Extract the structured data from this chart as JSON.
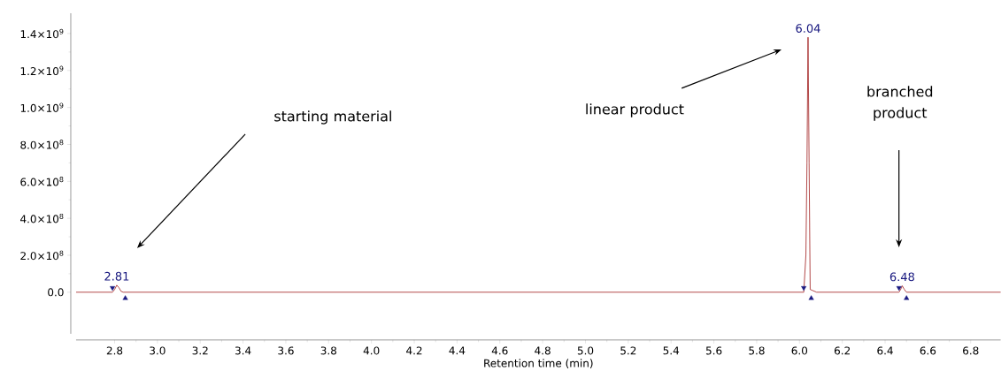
{
  "chart_data": {
    "type": "line",
    "xlabel": "Retention time (min)",
    "xlim": [
      2.62,
      6.94
    ],
    "ylim": [
      -225000000.0,
      1510000000.0
    ],
    "xticks": [
      2.8,
      {
        "value": 3,
        "label": "3.0"
      },
      3.2,
      3.4,
      3.6,
      3.8,
      {
        "value": 4,
        "label": "4.0"
      },
      4.2,
      4.4,
      4.6,
      4.8,
      {
        "value": 5,
        "label": "5.0"
      },
      5.2,
      5.4,
      5.6,
      5.8,
      {
        "value": 6,
        "label": "6.0"
      },
      6.2,
      6.4,
      6.6,
      6.8
    ],
    "yticks": [
      {
        "value": 0,
        "label": "0.0"
      },
      {
        "value": 200000000.0,
        "label": "2.0×10$^{8}$"
      },
      {
        "value": 400000000.0,
        "label": "4.0×10$^{8}$"
      },
      {
        "value": 600000000.0,
        "label": "6.0×10$^{8}$"
      },
      {
        "value": 800000000.0,
        "label": "8.0×10$^{8}$"
      },
      {
        "value": 1000000000.0,
        "label": "1.0×10$^{9}$"
      },
      {
        "value": 1200000000.0,
        "label": "1.2×10$^{9}$"
      },
      {
        "value": 1400000000.0,
        "label": "1.4×10$^{9}$"
      }
    ],
    "grid": false,
    "series": [
      {
        "color": "#a01c1c",
        "marker": "none",
        "line_style": "solid",
        "x": [
          2.62,
          2.79,
          2.8,
          2.81,
          2.82,
          2.83,
          2.84,
          6.02,
          6.03,
          6.035,
          6.04,
          6.045,
          6.05,
          6.06,
          6.08,
          6.465,
          6.475,
          6.48,
          6.49,
          6.5,
          6.94
        ],
        "values": [
          0,
          0,
          15000000.0,
          38000000.0,
          25000000.0,
          5000000.0,
          0,
          0,
          200000000.0,
          700000000.0,
          1380000000.0,
          700000000.0,
          15000000.0,
          10000000.0,
          0,
          0,
          20000000.0,
          35000000.0,
          15000000.0,
          0,
          0
        ]
      },
      {
        "type": "scatter",
        "color": "#1a1a80",
        "marker": "triangle_down",
        "x": [
          2.79,
          6.02,
          6.465
        ],
        "values": [
          24000000.0,
          24000000.0,
          24000000.0
        ]
      },
      {
        "type": "scatter",
        "color": "#1a1a80",
        "marker": "triangle",
        "x": [
          2.85,
          6.055,
          6.5
        ],
        "values": [
          -33000000.0,
          -33000000.0,
          -33000000.0
        ]
      }
    ],
    "annotations": [
      {
        "text": "2.81",
        "x": 2.81,
        "y": 38000000.0
      },
      {
        "text": "6.04",
        "x": 6.04,
        "y": 1380000000.0
      },
      {
        "text": "6.48",
        "x": 6.48,
        "y": 35000000.0
      },
      "starting material",
      "linear product",
      "branched product"
    ]
  }
}
